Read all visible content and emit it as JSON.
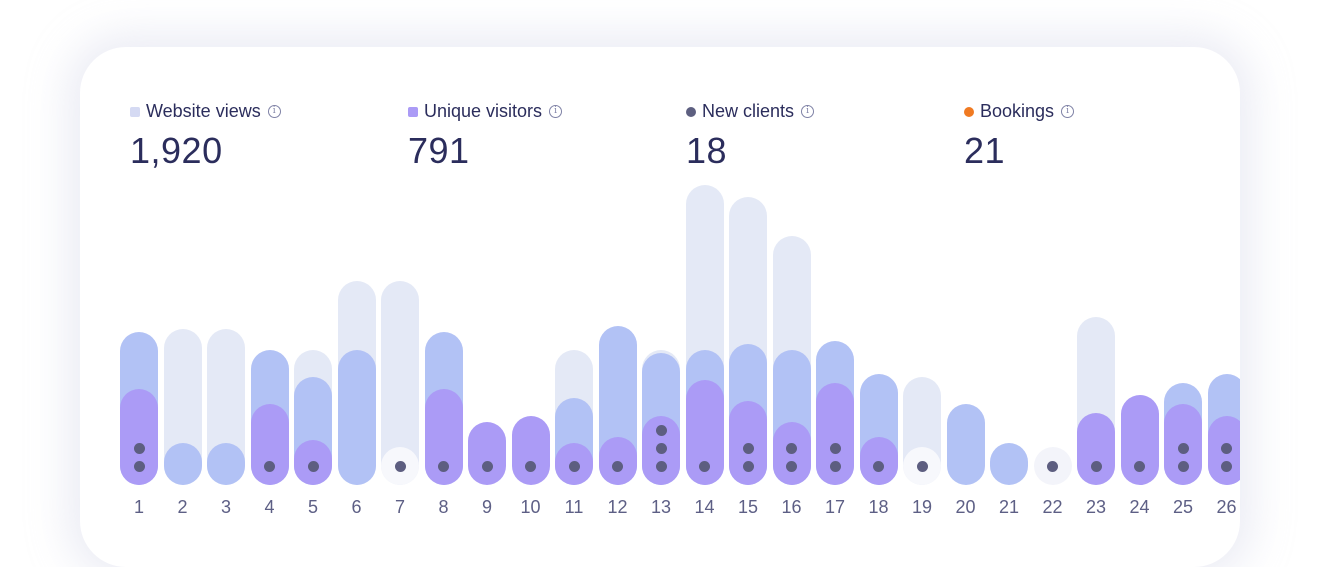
{
  "stats": [
    {
      "label": "Website views",
      "value": "1,920",
      "color": "#d5daf3",
      "shape": "square"
    },
    {
      "label": "Unique visitors",
      "value": "791",
      "color": "#ab9bf6",
      "shape": "square"
    },
    {
      "label": "New clients",
      "value": "18",
      "color": "#5d5f80",
      "shape": "circle"
    },
    {
      "label": "Bookings",
      "value": "21",
      "color": "#f07a22",
      "shape": "circle"
    }
  ],
  "chart_data": {
    "type": "bar",
    "stacking": "overlapping rounded bars",
    "categories": [
      "1",
      "2",
      "3",
      "4",
      "5",
      "6",
      "7",
      "8",
      "9",
      "10",
      "11",
      "12",
      "13",
      "14",
      "15",
      "16",
      "17",
      "18",
      "19",
      "20",
      "21",
      "22",
      "23",
      "24",
      "25",
      "26"
    ],
    "series": [
      {
        "name": "Website views",
        "color": "#e4e9f6",
        "values": [
          0,
          52,
          52,
          0,
          45,
          68,
          68,
          0,
          0,
          0,
          45,
          0,
          45,
          100,
          96,
          83,
          0,
          0,
          36,
          0,
          0,
          0,
          56,
          0,
          0,
          0
        ]
      },
      {
        "color": "#b2c2f5",
        "values": [
          51,
          14,
          14,
          45,
          36,
          45,
          0,
          51,
          0,
          0,
          29,
          53,
          44,
          45,
          47,
          45,
          48,
          37,
          0,
          27,
          14,
          0,
          0,
          0,
          34,
          37
        ]
      },
      {
        "name": "Unique visitors",
        "color": "#ab9bf6",
        "values": [
          32,
          0,
          0,
          27,
          15,
          0,
          0,
          32,
          21,
          23,
          14,
          16,
          23,
          35,
          28,
          21,
          34,
          16,
          0,
          0,
          0,
          0,
          24,
          30,
          27,
          23
        ]
      },
      {
        "name": "New clients",
        "color": "#5d5e80",
        "marker": "dot",
        "values": [
          2,
          0,
          0,
          1,
          1,
          0,
          1,
          1,
          1,
          1,
          1,
          1,
          3,
          1,
          2,
          2,
          2,
          1,
          1,
          0,
          0,
          1,
          1,
          1,
          2,
          2
        ]
      }
    ],
    "grid": false,
    "legend": "top"
  }
}
